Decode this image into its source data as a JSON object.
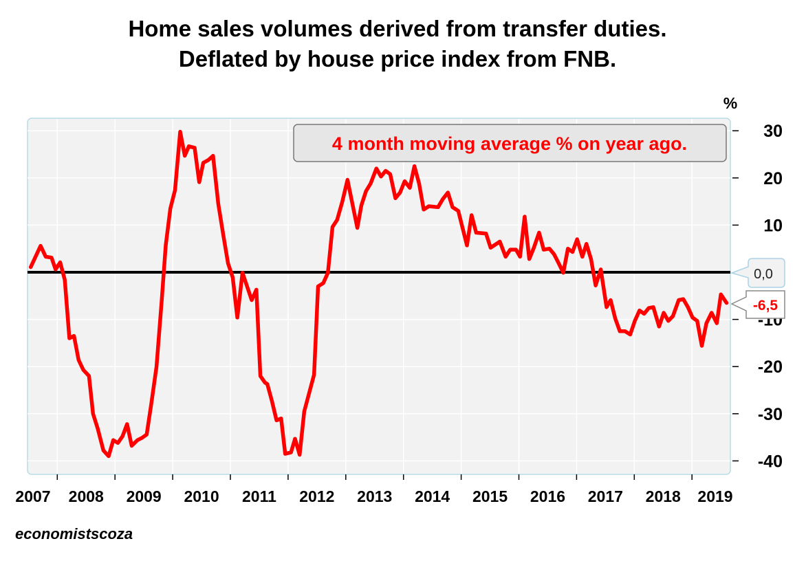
{
  "title_line1": "Home sales volumes derived from transfer duties.",
  "title_line2": "Deflated by house price index from FNB.",
  "credit": "economistscoza",
  "chart_data": {
    "type": "line",
    "title": "Home sales volumes derived from transfer duties. Deflated by house price index from FNB.",
    "ylabel": "%",
    "ylim": [
      -40,
      30
    ],
    "yticks": [
      "30",
      "20",
      "10",
      "0,0",
      "-10",
      "-20",
      "-30",
      "-40"
    ],
    "ytick_values": [
      30,
      20,
      10,
      0,
      -10,
      -20,
      -30,
      -40
    ],
    "xlim": [
      2007.0,
      2019.7
    ],
    "xtick_labels": [
      "2007",
      "2008",
      "2009",
      "2010",
      "2011",
      "2012",
      "2013",
      "2014",
      "2015",
      "2016",
      "2017",
      "2018",
      "2019"
    ],
    "grid": true,
    "annotation": "4 month moving average % on year ago.",
    "zero_label": "0,0",
    "last_value_label": "-6,5",
    "colors": {
      "series": "#ff0000",
      "zero_line": "#000000",
      "plot_bg": "#f2f2f2",
      "border": "#b9dbe9"
    },
    "series": [
      {
        "color": "#ff0000",
        "x": [
          2007.54,
          2007.71,
          2007.8,
          2007.9,
          2007.97,
          2008.05,
          2008.13,
          2008.21,
          2008.29,
          2008.37,
          2008.45,
          2008.55,
          2008.62,
          2008.7,
          2008.8,
          2008.89,
          2008.97,
          2009.05,
          2009.13,
          2009.21,
          2009.29,
          2009.39,
          2009.47,
          2009.55,
          2009.63,
          2009.72,
          2009.81,
          2009.88,
          2009.96,
          2010.04,
          2010.13,
          2010.21,
          2010.28,
          2010.38,
          2010.46,
          2010.53,
          2010.62,
          2010.7,
          2010.79,
          2010.88,
          2010.96,
          2011.04,
          2011.12,
          2011.21,
          2011.37,
          2011.45,
          2011.52,
          2011.6,
          2011.64,
          2011.72,
          2011.8,
          2011.88,
          2011.95,
          2012.05,
          2012.12,
          2012.2,
          2012.28,
          2012.45,
          2012.52,
          2012.61,
          2012.69,
          2012.77,
          2012.85,
          2012.94,
          2013.03,
          2013.2,
          2013.27,
          2013.35,
          2013.43,
          2013.53,
          2013.61,
          2013.69,
          2013.77,
          2013.86,
          2013.94,
          2014.02,
          2014.11,
          2014.19,
          2014.27,
          2014.35,
          2014.44,
          2014.6,
          2014.68,
          2014.77,
          2014.85,
          2014.95,
          2015.1,
          2015.18,
          2015.26,
          2015.43,
          2015.51,
          2015.67,
          2015.77,
          2015.85,
          2015.95,
          2016.02,
          2016.1,
          2016.18,
          2016.26,
          2016.35,
          2016.43,
          2016.53,
          2016.61,
          2016.69,
          2016.77,
          2016.85,
          2016.93,
          2017.01,
          2017.1,
          2017.17,
          2017.25,
          2017.33,
          2017.42,
          2017.52,
          2017.59,
          2017.67,
          2017.75,
          2017.84,
          2017.93,
          2018.01,
          2018.09,
          2018.17,
          2018.25,
          2018.33,
          2018.43,
          2018.51,
          2018.59,
          2018.67,
          2018.77,
          2018.85,
          2018.93,
          2019.01,
          2019.09,
          2019.17,
          2019.25,
          2019.34,
          2019.43,
          2019.5,
          2019.6
        ],
        "y": [
          1.1,
          5.6,
          3.3,
          3.1,
          0.6,
          2.1,
          -1.6,
          -14.0,
          -13.5,
          -18.6,
          -20.7,
          -22.0,
          -30.0,
          -33.1,
          -37.8,
          -39.0,
          -35.6,
          -36.2,
          -34.8,
          -32.2,
          -36.8,
          -35.6,
          -35.1,
          -34.4,
          -27.8,
          -20.0,
          -5.9,
          5.7,
          13.5,
          17.4,
          29.8,
          24.7,
          26.7,
          26.4,
          19.1,
          23.2,
          23.8,
          24.7,
          14.5,
          7.7,
          1.9,
          -1.1,
          -9.6,
          -0.1,
          -5.9,
          -3.7,
          -22.0,
          -23.4,
          -23.7,
          -27.3,
          -31.4,
          -31.0,
          -38.5,
          -38.2,
          -35.3,
          -38.7,
          -29.5,
          -21.7,
          -3.0,
          -2.3,
          -0.1,
          9.6,
          11.1,
          15.0,
          19.6,
          9.4,
          14.2,
          17.2,
          18.8,
          22.0,
          20.3,
          21.5,
          20.8,
          15.7,
          16.9,
          19.3,
          17.9,
          22.5,
          18.8,
          13.3,
          14.0,
          13.8,
          15.5,
          16.9,
          13.8,
          13.0,
          5.7,
          12.1,
          8.4,
          8.2,
          5.2,
          6.5,
          3.3,
          4.8,
          4.8,
          3.3,
          11.8,
          2.8,
          5.2,
          8.4,
          4.8,
          5.0,
          3.8,
          1.9,
          -0.1,
          5.0,
          4.3,
          7.0,
          3.3,
          6.0,
          2.8,
          -2.8,
          0.6,
          -7.4,
          -5.9,
          -9.8,
          -12.5,
          -12.5,
          -13.2,
          -10.3,
          -8.1,
          -8.8,
          -7.6,
          -7.4,
          -11.5,
          -8.6,
          -10.3,
          -9.3,
          -5.9,
          -5.7,
          -7.4,
          -9.6,
          -10.3,
          -15.6,
          -10.8,
          -8.6,
          -10.8,
          -4.7,
          -6.5
        ]
      }
    ]
  }
}
